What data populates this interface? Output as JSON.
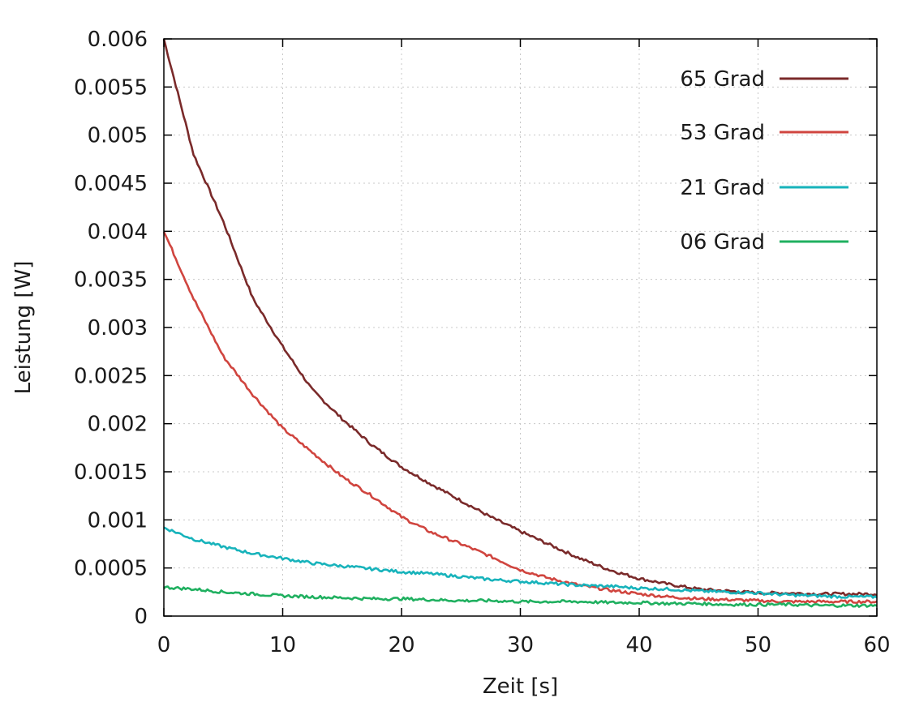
{
  "chart_data": {
    "type": "line",
    "title": "",
    "xlabel": "Zeit [s]",
    "ylabel": "Leistung [W]",
    "xlim": [
      0,
      60
    ],
    "ylim": [
      0,
      0.006
    ],
    "xticks": [
      "0",
      "10",
      "20",
      "30",
      "40",
      "50",
      "60"
    ],
    "yticks": [
      "0",
      "0.0005",
      "0.001",
      "0.0015",
      "0.002",
      "0.0025",
      "0.003",
      "0.0035",
      "0.004",
      "0.0045",
      "0.005",
      "0.0055",
      "0.006"
    ],
    "grid": true,
    "legend_position": "top-right",
    "x": [
      0,
      2.5,
      5,
      7.5,
      10,
      12.5,
      15,
      17.5,
      20,
      22.5,
      25,
      27.5,
      30,
      32.5,
      35,
      37.5,
      40,
      42.5,
      45,
      47.5,
      50,
      52.5,
      55,
      57.5,
      60
    ],
    "series": [
      {
        "name": "65 Grad",
        "color": "#7a2a2a",
        "values": [
          0.006,
          0.0048,
          0.0041,
          0.0033,
          0.0028,
          0.00235,
          0.00205,
          0.00178,
          0.00155,
          0.00137,
          0.0012,
          0.00103,
          0.00088,
          0.00074,
          0.0006,
          0.00048,
          0.00039,
          0.00033,
          0.00028,
          0.00026,
          0.00024,
          0.00024,
          0.00023,
          0.00023,
          0.00023
        ]
      },
      {
        "name": "53 Grad",
        "color": "#d0453f",
        "values": [
          0.004,
          0.0033,
          0.0027,
          0.0023,
          0.00195,
          0.0017,
          0.00145,
          0.00125,
          0.00103,
          0.00087,
          0.00075,
          0.00062,
          0.00048,
          0.00039,
          0.00032,
          0.00027,
          0.00023,
          0.0002,
          0.00018,
          0.00017,
          0.00016,
          0.00015,
          0.00015,
          0.00015,
          0.00015
        ]
      },
      {
        "name": "21 Grad",
        "color": "#17b3bb",
        "values": [
          0.00092,
          0.0008,
          0.00072,
          0.00065,
          0.0006,
          0.00055,
          0.00052,
          0.00049,
          0.00046,
          0.00044,
          0.00041,
          0.00038,
          0.00036,
          0.00034,
          0.00032,
          0.00031,
          0.00029,
          0.00028,
          0.00026,
          0.00025,
          0.00024,
          0.00022,
          0.00021,
          0.0002,
          0.0002
        ]
      },
      {
        "name": "06 Grad",
        "color": "#20b060",
        "values": [
          0.0003,
          0.00028,
          0.00025,
          0.00023,
          0.00021,
          0.0002,
          0.00019,
          0.00018,
          0.00018,
          0.00017,
          0.00016,
          0.00016,
          0.00015,
          0.00015,
          0.00015,
          0.00014,
          0.00014,
          0.00013,
          0.00013,
          0.00012,
          0.00012,
          0.00012,
          0.00011,
          0.00011,
          0.00011
        ]
      }
    ]
  }
}
